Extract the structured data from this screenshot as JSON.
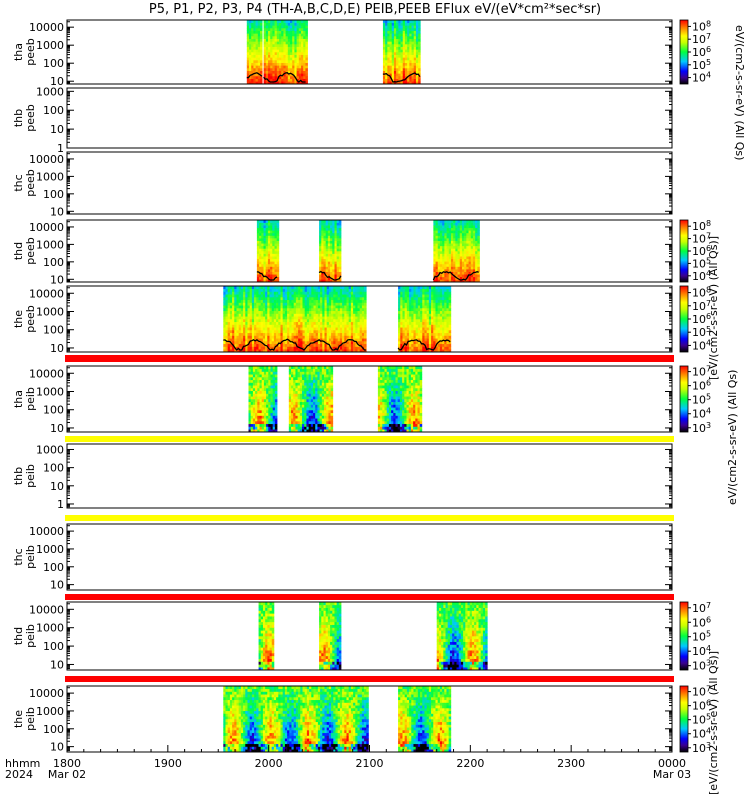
{
  "title": "P5, P1, P2, P3, P4 (TH-A,B,C,D,E) PEIB,PEEB EFlux eV/(eV*cm²*sec*sr)",
  "colors": {
    "flag_red": "#ff0000",
    "flag_yellow": "#ffff00",
    "no_data": "#ffffff",
    "trace": "#000000"
  },
  "colorbar_labels": {
    "short_a": "eV/(cm2-s-sr-eV) (All Qs)",
    "long_a": "[eV/(cm2-s-sr-eV) (All Qs)]",
    "short_b": "eV/(cm2-s-sr-eV) (All Qs)"
  },
  "chart_data": {
    "type": "heatmap",
    "x_unit": "UT (hhmm)",
    "xlim": [
      "2024-03-02 18:00",
      "2024-03-03 00:00"
    ],
    "x_ticks": [
      "1800",
      "1900",
      "2000",
      "2100",
      "2200",
      "2300",
      "0000"
    ],
    "x_tick_dates": [
      "Mar 02",
      "",
      "",
      "",
      "",
      "",
      "Mar 03"
    ],
    "x_axis_title": [
      "hhmm",
      "2024"
    ],
    "panels": [
      {
        "id": "tha_peeb",
        "ylabel": [
          "tha",
          "peeb"
        ],
        "yscale": "log",
        "ylim": [
          7,
          25000
        ],
        "y_ticks": [
          "10",
          "100",
          "1000",
          "10000"
        ],
        "colorbar": {
          "ticks": [
            "10^4",
            "10^5",
            "10^6",
            "10^7",
            "10^8"
          ],
          "min_exp": 3.5,
          "max_exp": 8.5
        },
        "data_intervals": [
          [
            "19:47",
            "19:56"
          ],
          [
            "19:57",
            "20:22"
          ],
          [
            "21:08",
            "21:30"
          ]
        ],
        "flag_below": null
      },
      {
        "id": "thb_peeb",
        "ylabel": [
          "thb",
          "peeb"
        ],
        "yscale": "log",
        "ylim": [
          1,
          1500
        ],
        "y_ticks": [
          "1",
          "10",
          "100",
          "1000"
        ],
        "colorbar": null,
        "data_intervals": [],
        "flag_below": null
      },
      {
        "id": "thc_peeb",
        "ylabel": [
          "thc",
          "peeb"
        ],
        "yscale": "log",
        "ylim": [
          7,
          25000
        ],
        "y_ticks": [
          "10",
          "100",
          "1000",
          "10000"
        ],
        "colorbar": null,
        "data_intervals": [],
        "flag_below": null
      },
      {
        "id": "thd_peeb",
        "ylabel": [
          "thd",
          "peeb"
        ],
        "yscale": "log",
        "ylim": [
          7,
          25000
        ],
        "y_ticks": [
          "10",
          "100",
          "1000",
          "10000"
        ],
        "colorbar": {
          "ticks": [
            "10^4",
            "10^5",
            "10^6",
            "10^7",
            "10^8"
          ],
          "min_exp": 3.5,
          "max_exp": 8.5
        },
        "data_intervals": [
          [
            "19:53",
            "20:05"
          ],
          [
            "20:30",
            "20:43"
          ],
          [
            "21:38",
            "22:05"
          ]
        ],
        "flag_below": null
      },
      {
        "id": "the_peeb",
        "ylabel": [
          "the",
          "peeb"
        ],
        "yscale": "log",
        "ylim": [
          6,
          25000
        ],
        "y_ticks": [
          "10",
          "100",
          "1000",
          "10000"
        ],
        "colorbar": {
          "ticks": [
            "10^4",
            "10^5",
            "10^6",
            "10^7",
            "10^8"
          ],
          "min_exp": 3.5,
          "max_exp": 8.5
        },
        "data_intervals": [
          [
            "19:33",
            "20:58"
          ],
          [
            "21:17",
            "21:48"
          ]
        ],
        "flag_below": "red"
      },
      {
        "id": "tha_peib",
        "ylabel": [
          "tha",
          "peib"
        ],
        "yscale": "log",
        "ylim": [
          6,
          25000
        ],
        "y_ticks": [
          "10",
          "100",
          "1000",
          "10000"
        ],
        "colorbar": {
          "ticks": [
            "10^3",
            "10^4",
            "10^5",
            "10^6",
            "10^7"
          ],
          "min_exp": 2.7,
          "max_exp": 7.4
        },
        "data_intervals": [
          [
            "19:48",
            "20:05"
          ],
          [
            "20:12",
            "20:37"
          ],
          [
            "21:05",
            "21:30"
          ]
        ],
        "flag_below": "yellow"
      },
      {
        "id": "thb_peib",
        "ylabel": [
          "thb",
          "peib"
        ],
        "yscale": "log",
        "ylim": [
          0.6,
          2000
        ],
        "y_ticks": [
          "1",
          "10",
          "100",
          "1000"
        ],
        "colorbar": null,
        "data_intervals": [],
        "flag_below": "yellow"
      },
      {
        "id": "thc_peib",
        "ylabel": [
          "thc",
          "peib"
        ],
        "yscale": "log",
        "ylim": [
          5,
          25000
        ],
        "y_ticks": [
          "10",
          "100",
          "1000",
          "10000"
        ],
        "colorbar": null,
        "data_intervals": [],
        "flag_below": "red"
      },
      {
        "id": "thd_peib",
        "ylabel": [
          "thd",
          "peib"
        ],
        "yscale": "log",
        "ylim": [
          5,
          25000
        ],
        "y_ticks": [
          "10",
          "100",
          "1000",
          "10000"
        ],
        "colorbar": {
          "ticks": [
            "10^3",
            "10^4",
            "10^5",
            "10^6",
            "10^7"
          ],
          "min_exp": 2.7,
          "max_exp": 7.4
        },
        "data_intervals": [
          [
            "19:54",
            "20:02"
          ],
          [
            "20:30",
            "20:43"
          ],
          [
            "21:40",
            "22:10"
          ]
        ],
        "flag_below": "red"
      },
      {
        "id": "the_peib",
        "ylabel": [
          "the",
          "peib"
        ],
        "yscale": "log",
        "ylim": [
          5,
          25000
        ],
        "y_ticks": [
          "10",
          "100",
          "1000",
          "10000"
        ],
        "colorbar": {
          "ticks": [
            "10^3",
            "10^4",
            "10^5",
            "10^6",
            "10^7"
          ],
          "min_exp": 2.7,
          "max_exp": 7.4
        },
        "data_intervals": [
          [
            "19:33",
            "20:59"
          ],
          [
            "21:17",
            "21:48"
          ]
        ],
        "flag_below": null
      }
    ]
  }
}
